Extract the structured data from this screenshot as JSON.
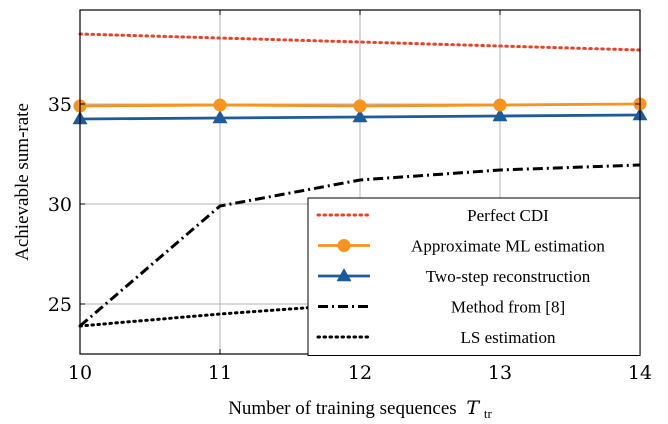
{
  "chart_data": {
    "type": "line",
    "xlabel": "Number of training sequences",
    "xlabel_symbol": "T",
    "xlabel_subscript": "tr",
    "ylabel": "Achievable sum-rate",
    "xlim": [
      10,
      14
    ],
    "ylim": [
      22.5,
      39.7
    ],
    "xticks": [
      10,
      11,
      12,
      13,
      14
    ],
    "yticks": [
      25,
      30,
      35
    ],
    "grid": true,
    "legend_position": "bottom-right",
    "series": [
      {
        "name": "Perfect CDI",
        "color": "#e8412b",
        "style": "dotted",
        "marker": "none",
        "x": [
          10,
          11,
          12,
          13,
          14
        ],
        "y": [
          38.5,
          38.3,
          38.1,
          37.9,
          37.7
        ]
      },
      {
        "name": "Approximate ML estimation",
        "color": "#f7941d",
        "style": "solid",
        "marker": "circle",
        "x": [
          10,
          11,
          12,
          13,
          14
        ],
        "y": [
          34.9,
          34.95,
          34.9,
          34.95,
          35.0
        ]
      },
      {
        "name": "Two-step reconstruction",
        "color": "#1f5a99",
        "style": "solid",
        "marker": "triangle",
        "x": [
          10,
          11,
          12,
          13,
          14
        ],
        "y": [
          34.25,
          34.3,
          34.35,
          34.4,
          34.45
        ]
      },
      {
        "name": "Method from [8]",
        "color": "#000000",
        "style": "dashdot",
        "marker": "none",
        "x": [
          10,
          11,
          12,
          13,
          14
        ],
        "y": [
          23.9,
          29.9,
          31.2,
          31.7,
          31.95
        ]
      },
      {
        "name": "LS estimation",
        "color": "#000000",
        "style": "dotted",
        "marker": "none",
        "x": [
          10,
          11,
          12,
          13,
          14
        ],
        "y": [
          23.9,
          24.5,
          25.0,
          25.5,
          26.0
        ]
      }
    ]
  }
}
